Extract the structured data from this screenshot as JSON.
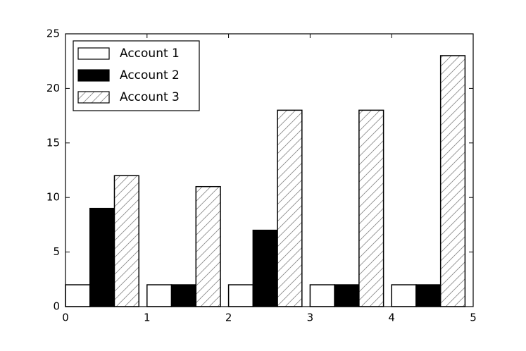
{
  "chart_data": {
    "type": "bar",
    "x": [
      0,
      1,
      2,
      3,
      4
    ],
    "series": [
      {
        "name": "Account 1",
        "color": "#ffffff",
        "values": [
          2,
          2,
          2,
          2,
          2
        ]
      },
      {
        "name": "Account 2",
        "color": "#000000",
        "values": [
          9,
          2,
          7,
          2,
          2
        ]
      },
      {
        "name": "Account 3",
        "color": "#ffffff",
        "hatch": "/",
        "values": [
          12,
          11,
          18,
          18,
          23
        ]
      }
    ],
    "xlim": [
      0,
      5
    ],
    "xticks": [
      0,
      1,
      2,
      3,
      4,
      5
    ],
    "ylim": [
      0,
      25
    ],
    "yticks": [
      0,
      5,
      10,
      15,
      20,
      25
    ],
    "legend": "upper left"
  }
}
